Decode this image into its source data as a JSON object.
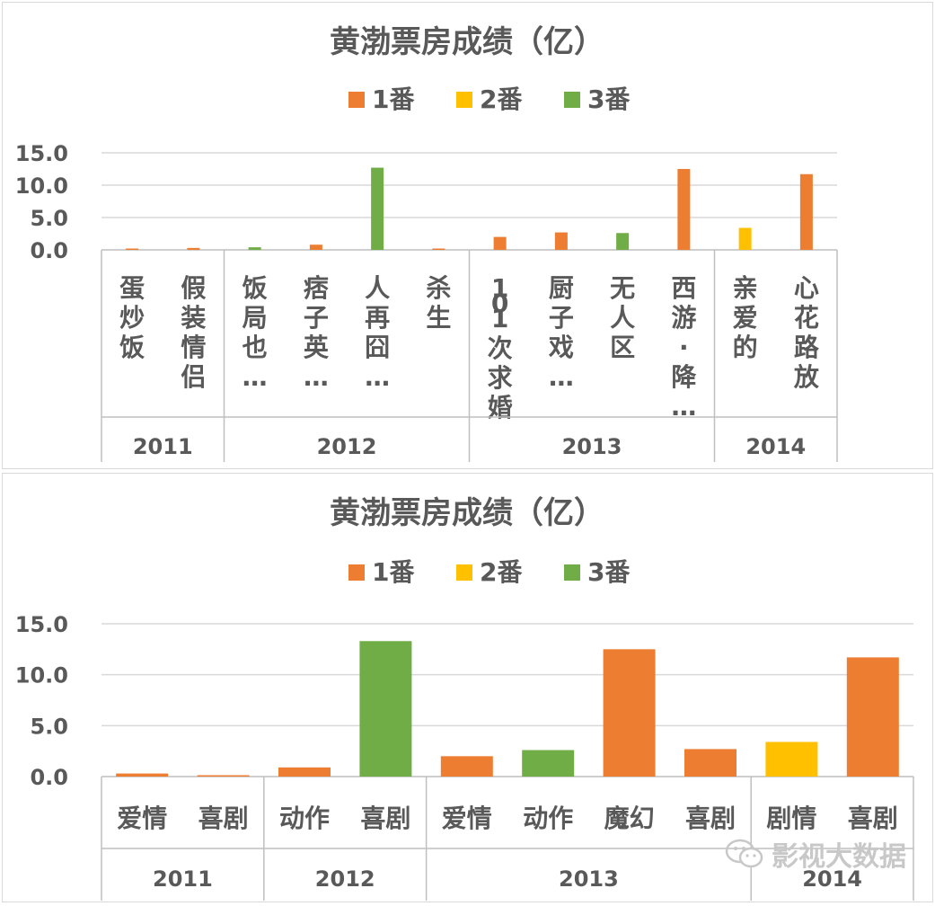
{
  "chart_data": [
    {
      "type": "bar",
      "title": "黄渤票房成绩（亿）",
      "legend": [
        "1番",
        "2番",
        "3番"
      ],
      "legend_position": "top",
      "colors": {
        "1番": "#ED7D31",
        "2番": "#FFC000",
        "3番": "#70AD47"
      },
      "ylim": [
        0,
        15
      ],
      "yticks": [
        "15.0",
        "10.0",
        "5.0",
        "0.0"
      ],
      "grid": true,
      "groups": [
        {
          "year": "2011",
          "items": [
            {
              "label": "蛋炒饭",
              "role": "1番",
              "value": 0.05
            },
            {
              "label": "假装情侣",
              "role": "1番",
              "value": 0.3
            }
          ]
        },
        {
          "year": "2012",
          "items": [
            {
              "label": "饭局也…",
              "role": "3番",
              "value": 0.4
            },
            {
              "label": "痞子英…",
              "role": "1番",
              "value": 0.8
            },
            {
              "label": "人再囧…",
              "role": "3番",
              "value": 12.7
            },
            {
              "label": "杀生",
              "role": "1番",
              "value": 0.1
            }
          ]
        },
        {
          "year": "2013",
          "items": [
            {
              "label": "101次求婚",
              "role": "1番",
              "value": 2.0
            },
            {
              "label": "厨子戏…",
              "role": "1番",
              "value": 2.7
            },
            {
              "label": "无人区",
              "role": "3番",
              "value": 2.6
            },
            {
              "label": "西游·降…",
              "role": "1番",
              "value": 12.5
            }
          ]
        },
        {
          "year": "2014",
          "items": [
            {
              "label": "亲爱的",
              "role": "2番",
              "value": 3.4
            },
            {
              "label": "心花路放",
              "role": "1番",
              "value": 11.7
            }
          ]
        }
      ]
    },
    {
      "type": "bar",
      "title": "黄渤票房成绩（亿）",
      "legend": [
        "1番",
        "2番",
        "3番"
      ],
      "legend_position": "top",
      "colors": {
        "1番": "#ED7D31",
        "2番": "#FFC000",
        "3番": "#70AD47"
      },
      "ylim": [
        0,
        15
      ],
      "yticks": [
        "15.0",
        "10.0",
        "5.0",
        "0.0"
      ],
      "grid": true,
      "groups": [
        {
          "year": "2011",
          "items": [
            {
              "label": "爱情",
              "role": "1番",
              "value": 0.3
            },
            {
              "label": "喜剧",
              "role": "1番",
              "value": 0.05
            }
          ]
        },
        {
          "year": "2012",
          "items": [
            {
              "label": "动作",
              "role": "1番",
              "value": 0.9
            },
            {
              "label": "喜剧",
              "role": "3番",
              "value": 13.3
            }
          ]
        },
        {
          "year": "2013",
          "items": [
            {
              "label": "爱情",
              "role": "1番",
              "value": 2.0
            },
            {
              "label": "动作",
              "role": "3番",
              "value": 2.6
            },
            {
              "label": "魔幻",
              "role": "1番",
              "value": 12.5
            },
            {
              "label": "喜剧",
              "role": "1番",
              "value": 2.7
            }
          ]
        },
        {
          "year": "2014",
          "items": [
            {
              "label": "剧情",
              "role": "2番",
              "value": 3.4
            },
            {
              "label": "喜剧",
              "role": "1番",
              "value": 11.7
            }
          ]
        }
      ]
    }
  ],
  "watermark": {
    "text": "影视大数据",
    "icon": "wechat-icon"
  }
}
